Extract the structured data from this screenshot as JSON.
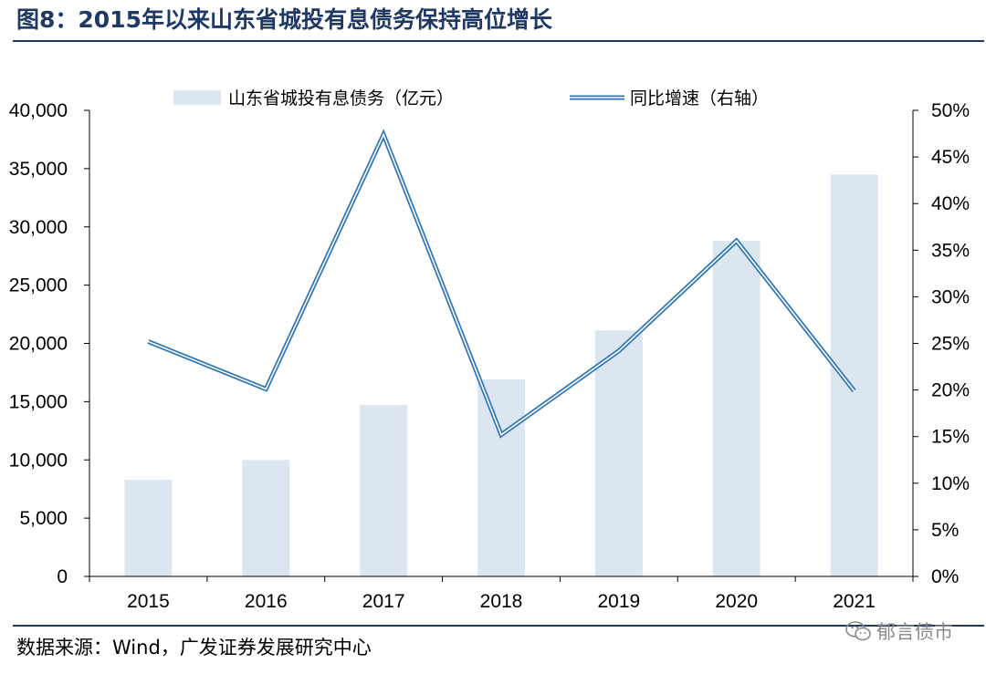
{
  "header": {
    "title": "图8：2015年以来山东省城投有息债务保持高位增长"
  },
  "footer": {
    "source": "数据来源：Wind，广发证券发展研究中心",
    "watermark": "郁言债市",
    "watermark_icon": "wechat-icon"
  },
  "colors": {
    "bar": "#dce6f1",
    "line_outer": "#2e75b6",
    "line_inner": "#ffffff",
    "title": "#1f3864",
    "axis": "#000000"
  },
  "chart_data": {
    "type": "bar",
    "categories": [
      "2015",
      "2016",
      "2017",
      "2018",
      "2019",
      "2020",
      "2021"
    ],
    "series": [
      {
        "name": "山东省城投有息债务（亿元）",
        "type": "bar",
        "axis": "left",
        "values": [
          8300,
          10000,
          14700,
          16900,
          21100,
          28800,
          34500
        ]
      },
      {
        "name": "同比增速（右轴）",
        "type": "line",
        "axis": "right",
        "values": [
          25.2,
          20.1,
          47.4,
          15.2,
          24.2,
          36.0,
          19.9
        ]
      }
    ],
    "y_left": {
      "min": 0,
      "max": 40000,
      "step": 5000,
      "tick_labels": [
        "0",
        "5,000",
        "10,000",
        "15,000",
        "20,000",
        "25,000",
        "30,000",
        "35,000",
        "40,000"
      ]
    },
    "y_right": {
      "min": 0,
      "max": 50,
      "step": 5,
      "unit": "%",
      "tick_labels": [
        "0%",
        "5%",
        "10%",
        "15%",
        "20%",
        "25%",
        "30%",
        "35%",
        "40%",
        "45%",
        "50%"
      ]
    },
    "grid": false,
    "legend_position": "top"
  }
}
